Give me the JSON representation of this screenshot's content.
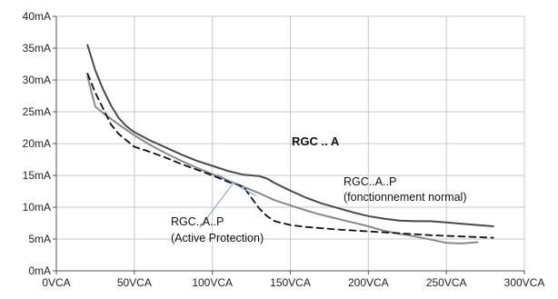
{
  "chart_data": {
    "type": "line",
    "title": "",
    "xlabel": "",
    "ylabel": "",
    "xlim": [
      0,
      300
    ],
    "ylim": [
      0,
      40
    ],
    "grid": true,
    "x_ticks": [
      0,
      50,
      100,
      150,
      200,
      250,
      300
    ],
    "y_ticks": [
      0,
      5,
      10,
      15,
      20,
      25,
      30,
      35,
      40
    ],
    "x_tick_labels": [
      "0VCA",
      "50VCA",
      "100VCA",
      "150VCA",
      "200VCA",
      "250VCA",
      "300VCA"
    ],
    "y_tick_labels": [
      "0mA",
      "5mA",
      "10mA",
      "15mA",
      "20mA",
      "25mA",
      "30mA",
      "35mA",
      "40mA"
    ],
    "series": [
      {
        "color": "#4a4a4a",
        "style": "solid",
        "x": [
          20,
          25,
          30,
          35,
          40,
          45,
          50,
          60,
          70,
          80,
          90,
          100,
          110,
          120,
          130,
          135,
          140,
          150,
          160,
          170,
          180,
          190,
          200,
          210,
          220,
          230,
          240,
          250,
          260,
          270,
          280
        ],
        "y": [
          35.5,
          31.5,
          28.5,
          26.0,
          24.0,
          22.7,
          21.8,
          20.5,
          19.4,
          18.3,
          17.3,
          16.5,
          15.7,
          15.1,
          14.9,
          14.5,
          13.8,
          12.6,
          11.5,
          10.6,
          9.9,
          9.2,
          8.6,
          8.2,
          7.9,
          7.8,
          7.8,
          7.6,
          7.4,
          7.2,
          7.0
        ]
      },
      {
        "color": "#8a8a8a",
        "style": "solid",
        "x": [
          20,
          25,
          30,
          40,
          50,
          60,
          70,
          80,
          90,
          100,
          110,
          120,
          130,
          140,
          150,
          160,
          170,
          180,
          190,
          200,
          210,
          220,
          230,
          240,
          250,
          260,
          270
        ],
        "y": [
          30.5,
          25.8,
          24.8,
          23.0,
          21.3,
          19.8,
          18.5,
          17.3,
          16.2,
          15.2,
          14.2,
          13.2,
          12.2,
          11.1,
          10.3,
          9.5,
          8.8,
          8.2,
          7.6,
          7.0,
          6.3,
          5.8,
          5.4,
          4.9,
          4.4,
          4.3,
          4.5
        ]
      },
      {
        "color": "#111111",
        "style": "dashed",
        "x": [
          20,
          25,
          30,
          35,
          40,
          50,
          60,
          70,
          80,
          90,
          100,
          110,
          120,
          125,
          130,
          135,
          140,
          150,
          160,
          170,
          180,
          200,
          220,
          240,
          260,
          280
        ],
        "y": [
          31.0,
          28.0,
          25.5,
          23.0,
          21.5,
          19.5,
          18.7,
          17.8,
          16.8,
          15.9,
          15.0,
          14.0,
          13.2,
          11.5,
          9.8,
          8.6,
          7.8,
          7.2,
          6.9,
          6.7,
          6.5,
          6.2,
          5.9,
          5.6,
          5.4,
          5.2
        ]
      }
    ],
    "annotations": [
      {
        "text": "RGC .. A",
        "bold": true
      },
      {
        "text": "RGC..A..P",
        "bold": false
      },
      {
        "text": "(fonctionnement normal)",
        "bold": false
      },
      {
        "text": "RGC..A..P",
        "bold": false
      },
      {
        "text": "(Active Protection)",
        "bold": false
      }
    ]
  }
}
